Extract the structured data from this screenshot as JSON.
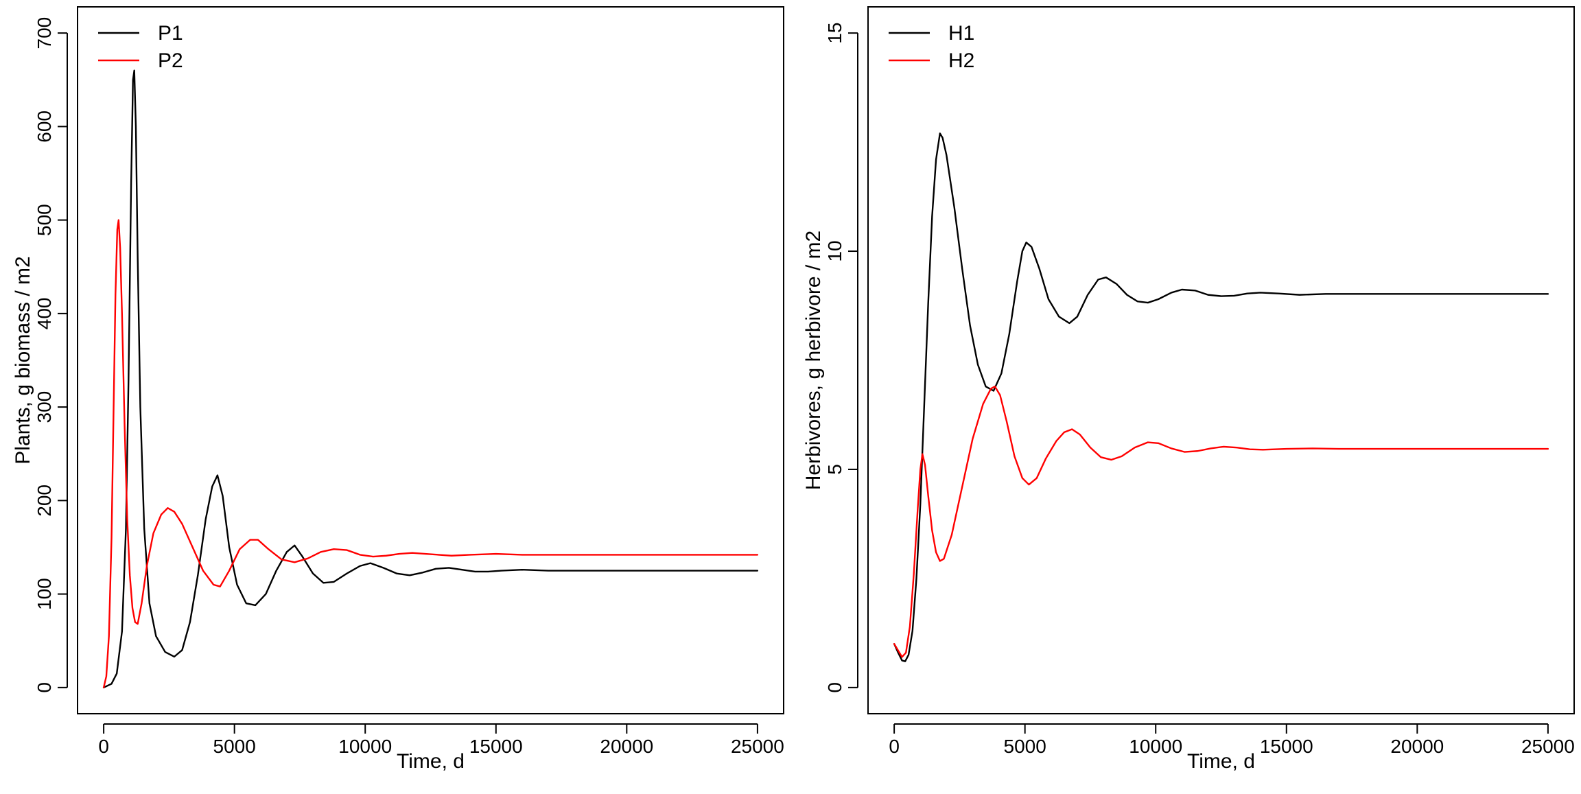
{
  "chart_data": [
    {
      "type": "line",
      "title": "",
      "xlabel": "Time, d",
      "ylabel": "Plants, g biomass / m2",
      "xlim": [
        -1000,
        26000
      ],
      "ylim": [
        -28,
        728
      ],
      "x_ticks": [
        0,
        5000,
        10000,
        15000,
        20000,
        25000
      ],
      "y_ticks": [
        0,
        100,
        200,
        300,
        400,
        500,
        600,
        700
      ],
      "grid": false,
      "legend_position": "top-left",
      "series": [
        {
          "name": "P1",
          "color": "#000000",
          "points": [
            [
              0,
              0
            ],
            [
              300,
              4
            ],
            [
              500,
              15
            ],
            [
              700,
              60
            ],
            [
              850,
              170
            ],
            [
              950,
              330
            ],
            [
              1050,
              540
            ],
            [
              1120,
              650
            ],
            [
              1170,
              660
            ],
            [
              1230,
              600
            ],
            [
              1300,
              460
            ],
            [
              1400,
              300
            ],
            [
              1550,
              170
            ],
            [
              1750,
              90
            ],
            [
              2000,
              55
            ],
            [
              2350,
              38
            ],
            [
              2700,
              33
            ],
            [
              3000,
              40
            ],
            [
              3300,
              70
            ],
            [
              3600,
              120
            ],
            [
              3900,
              180
            ],
            [
              4150,
              215
            ],
            [
              4350,
              227
            ],
            [
              4550,
              205
            ],
            [
              4800,
              150
            ],
            [
              5100,
              110
            ],
            [
              5450,
              90
            ],
            [
              5800,
              88
            ],
            [
              6200,
              100
            ],
            [
              6600,
              125
            ],
            [
              7000,
              145
            ],
            [
              7300,
              152
            ],
            [
              7600,
              140
            ],
            [
              8000,
              122
            ],
            [
              8400,
              112
            ],
            [
              8800,
              113
            ],
            [
              9300,
              122
            ],
            [
              9800,
              130
            ],
            [
              10200,
              133
            ],
            [
              10700,
              128
            ],
            [
              11200,
              122
            ],
            [
              11700,
              120
            ],
            [
              12200,
              123
            ],
            [
              12700,
              127
            ],
            [
              13200,
              128
            ],
            [
              13700,
              126
            ],
            [
              14200,
              124
            ],
            [
              14700,
              124
            ],
            [
              15200,
              125
            ],
            [
              16000,
              126
            ],
            [
              17000,
              125
            ],
            [
              18000,
              125
            ],
            [
              20000,
              125
            ],
            [
              22000,
              125
            ],
            [
              25000,
              125
            ]
          ]
        },
        {
          "name": "P2",
          "color": "#ff0000",
          "points": [
            [
              0,
              0
            ],
            [
              100,
              12
            ],
            [
              200,
              55
            ],
            [
              300,
              160
            ],
            [
              380,
              300
            ],
            [
              450,
              420
            ],
            [
              520,
              490
            ],
            [
              570,
              500
            ],
            [
              630,
              470
            ],
            [
              700,
              400
            ],
            [
              800,
              280
            ],
            [
              900,
              180
            ],
            [
              1000,
              120
            ],
            [
              1100,
              85
            ],
            [
              1200,
              70
            ],
            [
              1300,
              68
            ],
            [
              1450,
              90
            ],
            [
              1650,
              130
            ],
            [
              1900,
              165
            ],
            [
              2200,
              185
            ],
            [
              2450,
              192
            ],
            [
              2700,
              188
            ],
            [
              3000,
              175
            ],
            [
              3400,
              150
            ],
            [
              3800,
              125
            ],
            [
              4200,
              110
            ],
            [
              4450,
              108
            ],
            [
              4800,
              125
            ],
            [
              5200,
              148
            ],
            [
              5600,
              158
            ],
            [
              5900,
              158
            ],
            [
              6300,
              148
            ],
            [
              6800,
              137
            ],
            [
              7300,
              134
            ],
            [
              7800,
              138
            ],
            [
              8300,
              145
            ],
            [
              8800,
              148
            ],
            [
              9300,
              147
            ],
            [
              9800,
              142
            ],
            [
              10300,
              140
            ],
            [
              10800,
              141
            ],
            [
              11300,
              143
            ],
            [
              11800,
              144
            ],
            [
              12300,
              143
            ],
            [
              12800,
              142
            ],
            [
              13300,
              141
            ],
            [
              14000,
              142
            ],
            [
              15000,
              143
            ],
            [
              16000,
              142
            ],
            [
              18000,
              142
            ],
            [
              20000,
              142
            ],
            [
              22000,
              142
            ],
            [
              25000,
              142
            ]
          ]
        }
      ]
    },
    {
      "type": "line",
      "title": "",
      "xlabel": "Time, d",
      "ylabel": "Herbivores, g herbivore / m2",
      "xlim": [
        -1000,
        26000
      ],
      "ylim": [
        -0.6,
        15.6
      ],
      "x_ticks": [
        0,
        5000,
        10000,
        15000,
        20000,
        25000
      ],
      "y_ticks": [
        0,
        5,
        10,
        15
      ],
      "grid": false,
      "legend_position": "top-left",
      "series": [
        {
          "name": "H1",
          "color": "#000000",
          "points": [
            [
              0,
              1.0
            ],
            [
              150,
              0.8
            ],
            [
              300,
              0.62
            ],
            [
              420,
              0.6
            ],
            [
              550,
              0.75
            ],
            [
              700,
              1.3
            ],
            [
              850,
              2.5
            ],
            [
              1000,
              4.2
            ],
            [
              1150,
              6.5
            ],
            [
              1300,
              8.8
            ],
            [
              1450,
              10.8
            ],
            [
              1600,
              12.1
            ],
            [
              1750,
              12.7
            ],
            [
              1850,
              12.6
            ],
            [
              2000,
              12.2
            ],
            [
              2300,
              11.0
            ],
            [
              2600,
              9.6
            ],
            [
              2900,
              8.3
            ],
            [
              3200,
              7.4
            ],
            [
              3500,
              6.9
            ],
            [
              3800,
              6.8
            ],
            [
              4100,
              7.2
            ],
            [
              4400,
              8.1
            ],
            [
              4700,
              9.3
            ],
            [
              4900,
              10.0
            ],
            [
              5050,
              10.2
            ],
            [
              5250,
              10.1
            ],
            [
              5550,
              9.6
            ],
            [
              5900,
              8.9
            ],
            [
              6300,
              8.5
            ],
            [
              6700,
              8.35
            ],
            [
              7000,
              8.5
            ],
            [
              7400,
              9.0
            ],
            [
              7800,
              9.35
            ],
            [
              8100,
              9.4
            ],
            [
              8500,
              9.25
            ],
            [
              8900,
              9.0
            ],
            [
              9300,
              8.85
            ],
            [
              9700,
              8.82
            ],
            [
              10100,
              8.9
            ],
            [
              10600,
              9.05
            ],
            [
              11000,
              9.12
            ],
            [
              11500,
              9.1
            ],
            [
              12000,
              9.0
            ],
            [
              12500,
              8.97
            ],
            [
              13000,
              8.98
            ],
            [
              13500,
              9.03
            ],
            [
              14000,
              9.05
            ],
            [
              14700,
              9.03
            ],
            [
              15500,
              9.0
            ],
            [
              16500,
              9.02
            ],
            [
              18000,
              9.02
            ],
            [
              20000,
              9.02
            ],
            [
              22000,
              9.02
            ],
            [
              25000,
              9.02
            ]
          ]
        },
        {
          "name": "H2",
          "color": "#ff0000",
          "points": [
            [
              0,
              1.0
            ],
            [
              150,
              0.85
            ],
            [
              300,
              0.7
            ],
            [
              450,
              0.8
            ],
            [
              600,
              1.4
            ],
            [
              750,
              2.6
            ],
            [
              900,
              4.1
            ],
            [
              1000,
              5.0
            ],
            [
              1080,
              5.35
            ],
            [
              1180,
              5.1
            ],
            [
              1300,
              4.4
            ],
            [
              1450,
              3.6
            ],
            [
              1600,
              3.1
            ],
            [
              1750,
              2.9
            ],
            [
              1900,
              2.95
            ],
            [
              2200,
              3.5
            ],
            [
              2600,
              4.6
            ],
            [
              3000,
              5.7
            ],
            [
              3400,
              6.5
            ],
            [
              3700,
              6.85
            ],
            [
              3850,
              6.9
            ],
            [
              4050,
              6.7
            ],
            [
              4300,
              6.1
            ],
            [
              4600,
              5.3
            ],
            [
              4900,
              4.8
            ],
            [
              5150,
              4.65
            ],
            [
              5450,
              4.8
            ],
            [
              5800,
              5.25
            ],
            [
              6200,
              5.65
            ],
            [
              6500,
              5.85
            ],
            [
              6800,
              5.92
            ],
            [
              7100,
              5.8
            ],
            [
              7500,
              5.5
            ],
            [
              7900,
              5.28
            ],
            [
              8300,
              5.22
            ],
            [
              8700,
              5.3
            ],
            [
              9200,
              5.5
            ],
            [
              9700,
              5.62
            ],
            [
              10100,
              5.6
            ],
            [
              10600,
              5.48
            ],
            [
              11100,
              5.4
            ],
            [
              11600,
              5.42
            ],
            [
              12100,
              5.48
            ],
            [
              12600,
              5.52
            ],
            [
              13100,
              5.5
            ],
            [
              13600,
              5.46
            ],
            [
              14100,
              5.45
            ],
            [
              15000,
              5.47
            ],
            [
              16000,
              5.48
            ],
            [
              17000,
              5.47
            ],
            [
              19000,
              5.47
            ],
            [
              22000,
              5.47
            ],
            [
              25000,
              5.47
            ]
          ]
        }
      ]
    }
  ]
}
